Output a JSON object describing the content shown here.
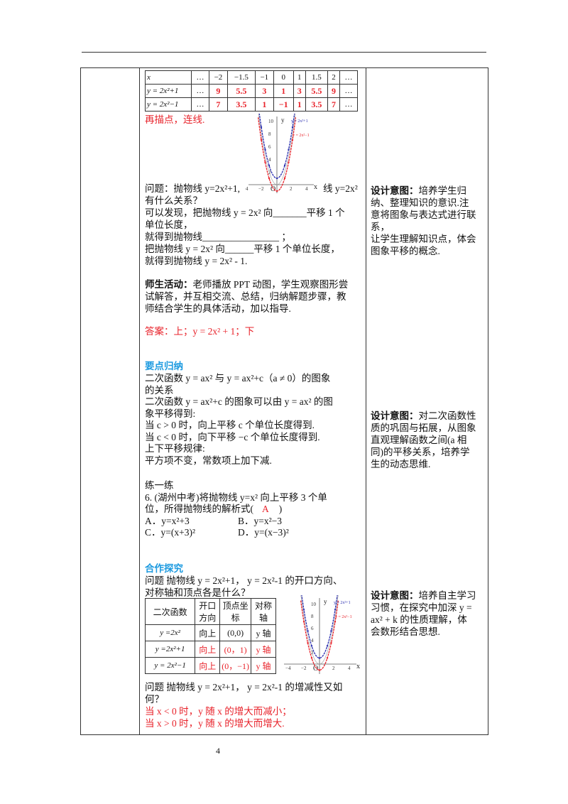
{
  "page_number": "4",
  "value_table": {
    "rows": [
      [
        "x",
        "…",
        "−2",
        "−1.5",
        "−1",
        "0",
        "1",
        "1.5",
        "2",
        "…"
      ],
      [
        "y = 2x²+1",
        "…",
        "9",
        "5.5",
        "3",
        "1",
        "3",
        "5.5",
        "9",
        "…"
      ],
      [
        "y = 2x²−1",
        "…",
        "7",
        "3.5",
        "1",
        "−1",
        "1",
        "3.5",
        "7",
        "…"
      ]
    ]
  },
  "graph": {
    "labels": {
      "upper": "y = 2x²+1",
      "lower": "y = 2x²−1",
      "x": "x",
      "y": "y",
      "origin": "O"
    },
    "y_ticks": [
      "10",
      "8",
      "6",
      "4",
      "2",
      "−2"
    ],
    "x_ticks": [
      "−4",
      "−2",
      "2",
      "4"
    ],
    "colors": {
      "upper": "#2b2fb0",
      "lower": "#e8222a"
    }
  },
  "section1": {
    "plot_step": "再描点，连线.",
    "q_line1a": "问题：抛物线  y=2x²+1,",
    "q_line1b": "线  y=2x²",
    "lines": [
      "有什么关系？",
      "可以发现，把抛物线  y = 2x²  向_______平移 1 个",
      "单位长度，",
      "就得到抛物线________________  ；",
      "把抛物线  y = 2x²  向______平移 1 个单位长度，",
      "就得到抛物线  y = 2x² - 1."
    ],
    "activity_label": "师生活动：",
    "activity": [
      "老师播放 PPT 动图，学生观察图形尝",
      "试解答，并互相交流、总结，归纳解题步骤，教",
      "师结合学生的具体活动，加以指导."
    ],
    "answer": "答案：上；y = 2x² + 1；下"
  },
  "section2": {
    "title": "要点归纳",
    "lines": [
      "二次函数  y = ax²  与  y = ax²+c（a ≠ 0）的图象",
      "的关系",
      "二次函数   y = ax²+c  的图象可以由  y = ax²  的图",
      "象平移得到:",
      "当 c > 0  时，向上平移  c  个单位长度得到.",
      "当 c < 0  时，向下平移  −c  个单位长度得到.",
      "上下平移规律:",
      "平方项不变，常数项上加下减."
    ],
    "practice_title": "练一练",
    "q1": "6. (湖州中考)将抛物线  y=x²  向上平移  3  个单",
    "q2": "位，所得抛物线的解析式(",
    "answer": "A",
    "q2_end": ")",
    "optA": "A．y=x²+3",
    "optB": "B．y=x²−3",
    "optC": "C．y=(x+3)²",
    "optD": "D．y=(x−3)²"
  },
  "section3": {
    "title": "合作探究",
    "q1": [
      "问题  抛物线  y = 2x²+1，  y = 2x²-1 的开口方向、",
      "对称轴和顶点各是什么？"
    ],
    "table": {
      "headers": [
        "二次函数",
        "开口方向",
        "顶点坐标",
        "对称轴"
      ],
      "rows": [
        [
          "y =2x²",
          "向上",
          "(0,0)",
          "y 轴"
        ],
        [
          "y =2x²+1",
          "向上",
          "(0，1)",
          "y 轴"
        ],
        [
          "y = 2x²−1",
          "向上",
          "(0，−1)",
          "y 轴"
        ]
      ]
    },
    "q2": [
      "问题  抛物线  y = 2x²+1，  y = 2x²-1 的增减性又如",
      "何？"
    ],
    "ans": [
      "当  x < 0  时，y  随  x  的增大而减小；",
      "当  x > 0  时，y  随  x  的增大而增大."
    ]
  },
  "design": [
    {
      "label": "设计意图：",
      "lines": [
        "培养学生归",
        "纳、整理知识的意识.注",
        "意将图象与表达式进行联",
        "系，",
        "让学生理解知识点，体会",
        "图象平移的概念."
      ]
    },
    {
      "label": "设计意图：",
      "lines": [
        "对二次函数性",
        "质的巩固与拓展，从图象",
        "直观理解函数之间(a 相",
        "同)的平移关系，培养学",
        "生的动态思维."
      ]
    },
    {
      "label": "设计意图：",
      "lines": [
        "培养自主学习",
        "习惯，在探究中加深  y =",
        "ax² + k  的性质理解，体",
        "会数形结合思想."
      ]
    }
  ]
}
